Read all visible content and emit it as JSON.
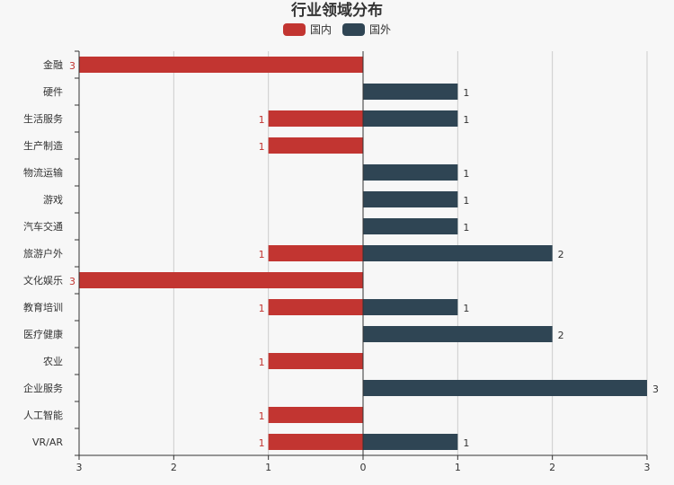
{
  "chart_data": {
    "type": "bar",
    "orientation": "horizontal-diverging",
    "title": "行业领域分布",
    "categories": [
      "金融",
      "硬件",
      "生活服务",
      "生产制造",
      "物流运输",
      "游戏",
      "汽车交通",
      "旅游户外",
      "文化娱乐",
      "教育培训",
      "医疗健康",
      "农业",
      "企业服务",
      "人工智能",
      "VR/AR"
    ],
    "series": [
      {
        "name": "国内",
        "color": "#c23531",
        "side": "left",
        "values": [
          3,
          0,
          1,
          1,
          0,
          0,
          0,
          1,
          3,
          1,
          0,
          1,
          0,
          1,
          1
        ]
      },
      {
        "name": "国外",
        "color": "#2f4554",
        "side": "right",
        "values": [
          0,
          1,
          1,
          0,
          1,
          1,
          1,
          2,
          0,
          1,
          2,
          0,
          3,
          0,
          1
        ]
      }
    ],
    "xlim": [
      -3,
      3
    ],
    "x_ticks": [
      -3,
      -2,
      -1,
      0,
      1,
      2,
      3
    ],
    "x_tick_labels": [
      "3",
      "2",
      "1",
      "0",
      "1",
      "2",
      "3"
    ],
    "grid": true,
    "legend": "top-center"
  }
}
